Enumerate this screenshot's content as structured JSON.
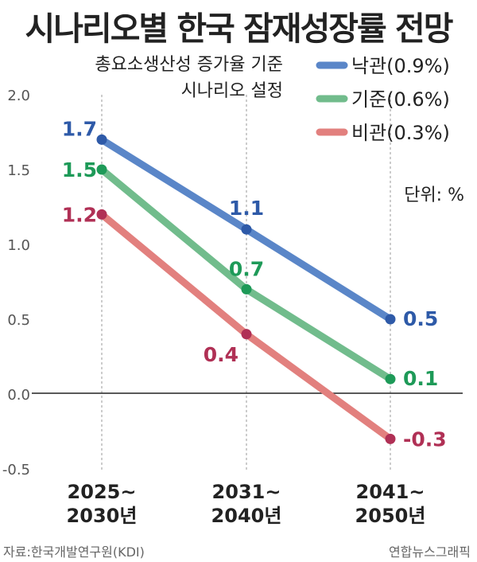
{
  "title": "시나리오별 한국 잠재성장률 전망",
  "note": [
    "총요소생산성 증가율 기준",
    "시나리오 설정"
  ],
  "unit": "단위: %",
  "source": "자료:한국개발연구원(KDI)",
  "credit": "연합뉴스그래픽",
  "chart_data": {
    "type": "line",
    "categories": [
      [
        "2025~",
        "2030년"
      ],
      [
        "2031~",
        "2040년"
      ],
      [
        "2041~",
        "2050년"
      ]
    ],
    "ylim": [
      -0.5,
      2.0
    ],
    "yticks": [
      2.0,
      1.5,
      1.0,
      0.5,
      0.0,
      -0.5
    ],
    "ytick_labels": [
      "2.0",
      "1.5",
      "1.0",
      "0.5",
      "0.0",
      "-0.5"
    ],
    "grid": "dashed vertical",
    "legend": "top-right",
    "series": [
      {
        "name": "낙관(0.9%)",
        "color": "#5a86c8",
        "label_color": "#2e5aa8",
        "values": [
          1.7,
          1.1,
          0.5
        ],
        "labels": [
          "1.7",
          "1.1",
          "0.5"
        ]
      },
      {
        "name": "기준(0.6%)",
        "color": "#71bc8c",
        "label_color": "#1e9a58",
        "values": [
          1.5,
          0.7,
          0.1
        ],
        "labels": [
          "1.5",
          "0.7",
          "0.1"
        ]
      },
      {
        "name": "비관(0.3%)",
        "color": "#e2807e",
        "label_color": "#b03055",
        "values": [
          1.2,
          0.4,
          -0.3
        ],
        "labels": [
          "1.2",
          "0.4",
          "-0.3"
        ]
      }
    ]
  }
}
